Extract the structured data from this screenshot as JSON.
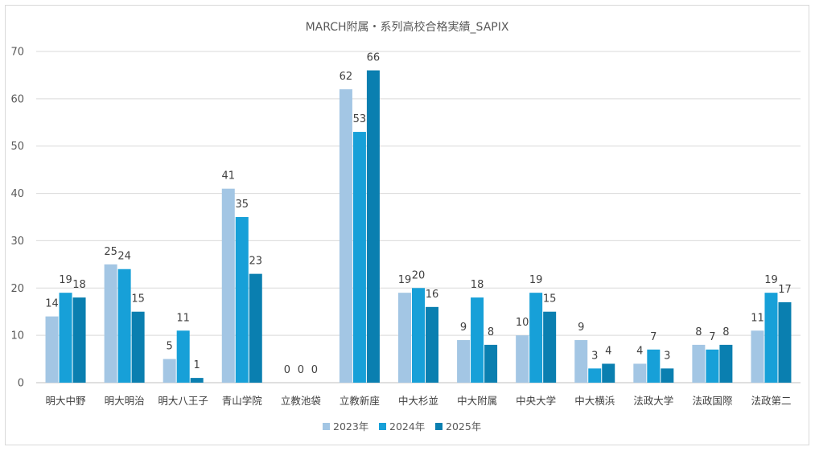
{
  "chart_data": {
    "type": "bar",
    "title": "MARCH附属・系列高校合格実績_SAPIX",
    "categories": [
      "明大中野",
      "明大明治",
      "明大八王子",
      "青山学院",
      "立教池袋",
      "立教新座",
      "中大杉並",
      "中大附属",
      "中央大学",
      "中大横浜",
      "法政大学",
      "法政国際",
      "法政第二"
    ],
    "series": [
      {
        "name": "2023年",
        "color": "#a3c6e4",
        "values": [
          14,
          25,
          5,
          41,
          0,
          62,
          19,
          9,
          10,
          9,
          4,
          8,
          11
        ]
      },
      {
        "name": "2024年",
        "color": "#17a0d8",
        "values": [
          19,
          24,
          11,
          35,
          0,
          53,
          20,
          18,
          19,
          3,
          7,
          7,
          19
        ]
      },
      {
        "name": "2025年",
        "color": "#0a7fb0",
        "values": [
          18,
          15,
          1,
          23,
          0,
          66,
          16,
          8,
          15,
          4,
          3,
          8,
          17
        ]
      }
    ],
    "ylim": [
      0,
      70
    ],
    "yticks": [
      0,
      10,
      20,
      30,
      40,
      50,
      60,
      70
    ],
    "xlabel": "",
    "ylabel": "",
    "grid": true,
    "legend": "bottom",
    "data_labels": true
  }
}
